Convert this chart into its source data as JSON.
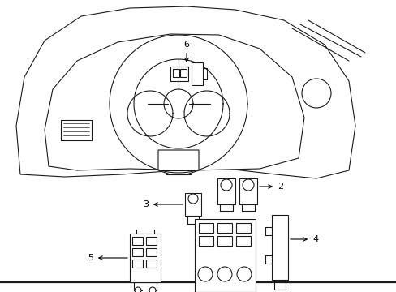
{
  "background_color": "#ffffff",
  "line_color": "#1a1a1a",
  "line_width": 0.8,
  "fig_width": 4.89,
  "fig_height": 3.6,
  "dpi": 100
}
